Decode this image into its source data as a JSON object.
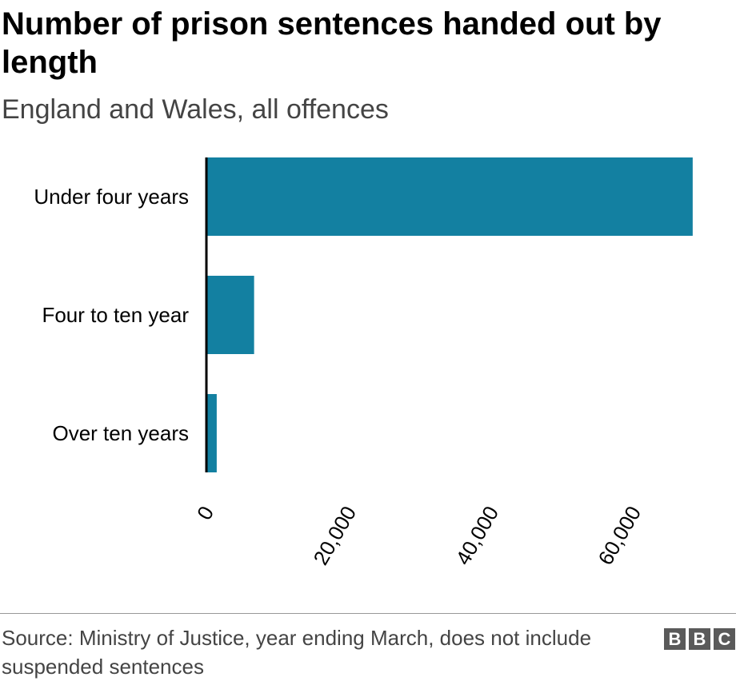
{
  "title": "Number of prison sentences handed out by length",
  "subtitle": "England and Wales, all offences",
  "source": "Source: Ministry of Justice, year ending March, does not include suspended sentences",
  "logo": [
    "B",
    "B",
    "C"
  ],
  "colors": {
    "bar": "#1380a1",
    "axis": "#000000"
  },
  "chart_data": {
    "type": "bar",
    "orientation": "horizontal",
    "categories": [
      "Under four years",
      "Four to ten year",
      "Over ten years"
    ],
    "values": [
      68300,
      6700,
      1450
    ],
    "xlim": [
      0,
      70000
    ],
    "xticks": [
      0,
      20000,
      40000,
      60000
    ],
    "xtick_labels": [
      "0",
      "20,000",
      "40,000",
      "60,000"
    ],
    "xlabel": "",
    "ylabel": "",
    "grid": false
  }
}
